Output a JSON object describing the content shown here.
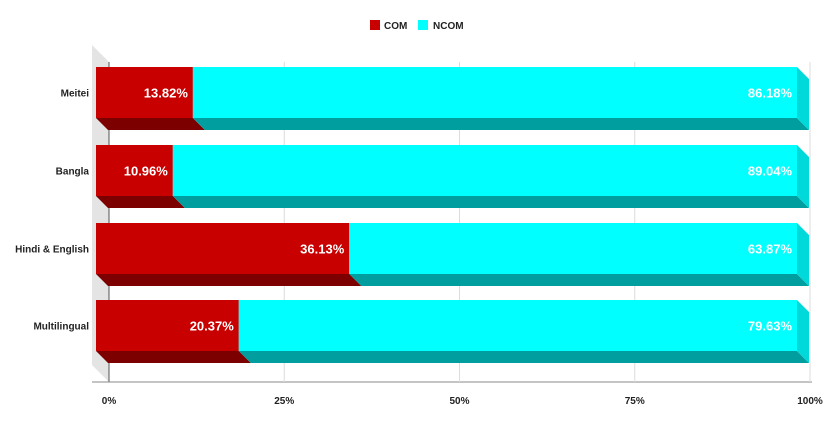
{
  "chart_data": {
    "type": "bar",
    "orientation": "horizontal",
    "stacked": true,
    "percent_stacked": true,
    "style": "3d",
    "categories": [
      "Meitei",
      "Bangla",
      "Hindi & English",
      "Multilingual"
    ],
    "series": [
      {
        "name": "COM",
        "values": [
          13.82,
          10.96,
          36.13,
          20.37
        ],
        "labels": [
          "13.82%",
          "10.96%",
          "36.13%",
          "20.37%"
        ]
      },
      {
        "name": "NCOM",
        "values": [
          86.18,
          89.04,
          63.87,
          79.63
        ],
        "labels": [
          "86.18%",
          "89.04%",
          "63.87%",
          "79.63%"
        ]
      }
    ],
    "xlim": [
      0,
      100
    ],
    "x_ticks": [
      "0%",
      "25%",
      "50%",
      "75%",
      "100%"
    ],
    "grid": true,
    "legend": "top-center",
    "colors": {
      "COM": "#c80000",
      "NCOM": "#00ffff"
    }
  }
}
